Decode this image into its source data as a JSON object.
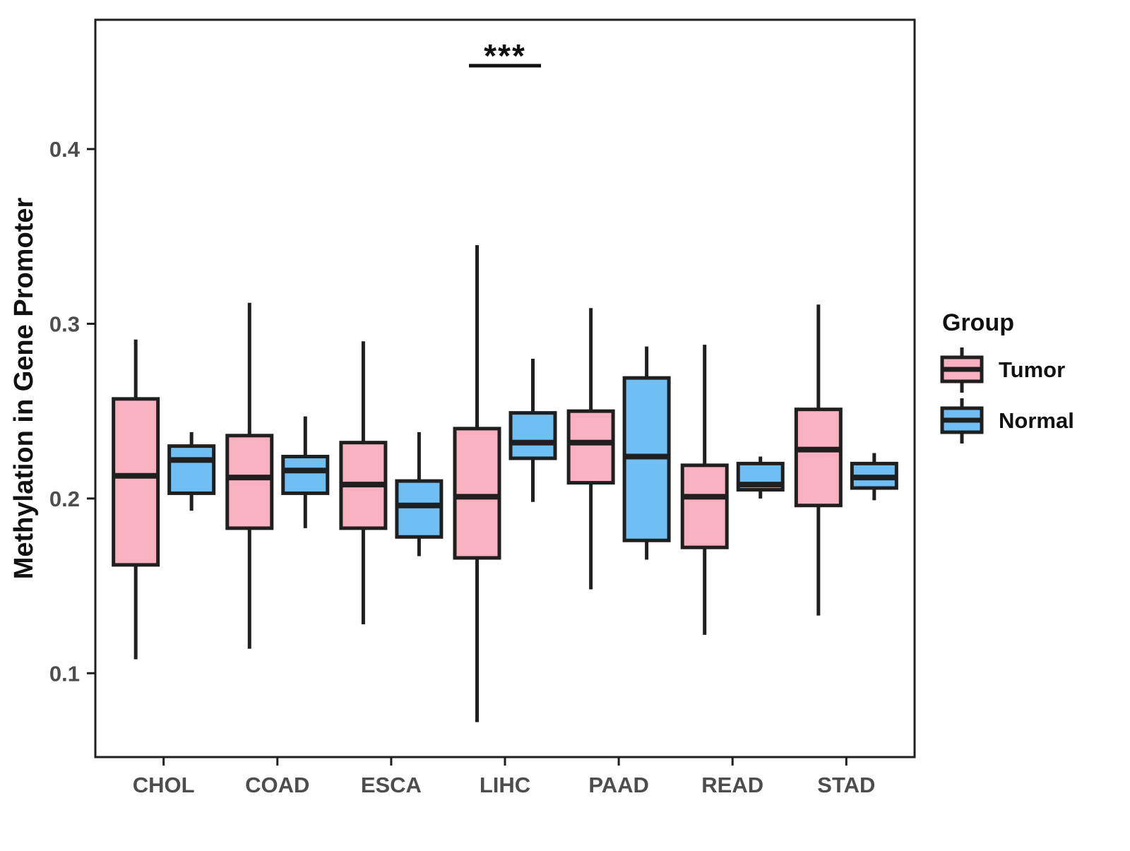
{
  "legend": {
    "title": "Group",
    "position": "right"
  },
  "chart_data": {
    "type": "boxplot",
    "title": "",
    "xlabel": "",
    "ylabel": "Methylation in Gene Promoter",
    "categories": [
      "CHOL",
      "COAD",
      "ESCA",
      "LIHC",
      "PAAD",
      "READ",
      "STAD"
    ],
    "yticks": [
      0.1,
      0.2,
      0.3,
      0.4
    ],
    "ylim": [
      0.052,
      0.474
    ],
    "grid": "none",
    "legend_position": "right",
    "ink_color": "#1f1f1f",
    "axis_text_color": "#4d4d4d",
    "series": [
      {
        "name": "Tumor",
        "color": "#F9B0C1",
        "boxes": [
          {
            "low": 0.108,
            "q1": 0.162,
            "median": 0.213,
            "q3": 0.257,
            "high": 0.291
          },
          {
            "low": 0.114,
            "q1": 0.183,
            "median": 0.212,
            "q3": 0.236,
            "high": 0.312
          },
          {
            "low": 0.128,
            "q1": 0.183,
            "median": 0.208,
            "q3": 0.232,
            "high": 0.29
          },
          {
            "low": 0.072,
            "q1": 0.166,
            "median": 0.201,
            "q3": 0.24,
            "high": 0.345
          },
          {
            "low": 0.148,
            "q1": 0.209,
            "median": 0.232,
            "q3": 0.25,
            "high": 0.309
          },
          {
            "low": 0.122,
            "q1": 0.172,
            "median": 0.201,
            "q3": 0.219,
            "high": 0.288
          },
          {
            "low": 0.133,
            "q1": 0.196,
            "median": 0.228,
            "q3": 0.251,
            "high": 0.311
          }
        ]
      },
      {
        "name": "Normal",
        "color": "#6FBFF4",
        "boxes": [
          {
            "low": 0.193,
            "q1": 0.203,
            "median": 0.222,
            "q3": 0.23,
            "high": 0.238
          },
          {
            "low": 0.183,
            "q1": 0.203,
            "median": 0.216,
            "q3": 0.224,
            "high": 0.247
          },
          {
            "low": 0.167,
            "q1": 0.178,
            "median": 0.196,
            "q3": 0.21,
            "high": 0.238
          },
          {
            "low": 0.198,
            "q1": 0.223,
            "median": 0.232,
            "q3": 0.249,
            "high": 0.28
          },
          {
            "low": 0.165,
            "q1": 0.176,
            "median": 0.224,
            "q3": 0.269,
            "high": 0.287
          },
          {
            "low": 0.2,
            "q1": 0.205,
            "median": 0.208,
            "q3": 0.22,
            "high": 0.224
          },
          {
            "low": 0.199,
            "q1": 0.206,
            "median": 0.212,
            "q3": 0.22,
            "high": 0.226
          }
        ]
      }
    ],
    "annotations": [
      {
        "type": "significance",
        "text": "***",
        "category": "LIHC"
      }
    ]
  }
}
